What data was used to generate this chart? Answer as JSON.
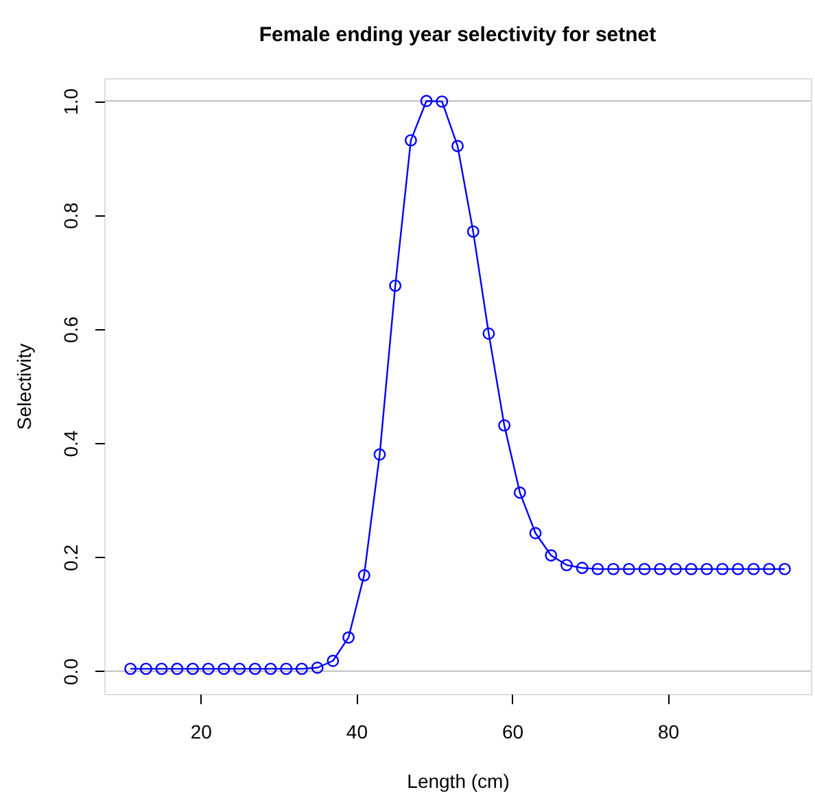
{
  "chart_data": {
    "type": "line",
    "title": "Female ending year selectivity for setnet",
    "xlabel": "Length (cm)",
    "ylabel": "Selectivity",
    "x": [
      11,
      13,
      15,
      17,
      19,
      21,
      23,
      25,
      27,
      29,
      31,
      33,
      35,
      37,
      39,
      41,
      43,
      45,
      47,
      49,
      51,
      53,
      55,
      57,
      59,
      61,
      63,
      65,
      67,
      69,
      71,
      73,
      75,
      77,
      79,
      81,
      83,
      85,
      87,
      89,
      91,
      93,
      95
    ],
    "series": [
      {
        "color": "#0000ff",
        "values": [
          0.004,
          0.004,
          0.004,
          0.004,
          0.004,
          0.004,
          0.004,
          0.004,
          0.004,
          0.004,
          0.004,
          0.004,
          0.006,
          0.018,
          0.059,
          0.168,
          0.38,
          0.676,
          0.931,
          1.0,
          0.999,
          0.921,
          0.771,
          0.592,
          0.431,
          0.313,
          0.242,
          0.203,
          0.186,
          0.181,
          0.179,
          0.179,
          0.179,
          0.179,
          0.179,
          0.179,
          0.179,
          0.179,
          0.179,
          0.179,
          0.179,
          0.179,
          0.179
        ]
      }
    ],
    "xlim": [
      7.64,
      98.36
    ],
    "ylim": [
      -0.04,
      1.04
    ],
    "xticks": [
      20,
      40,
      60,
      80
    ],
    "yticks": [
      {
        "value": 0,
        "label": "0.0"
      },
      0.2,
      0.4,
      0.6,
      0.8,
      {
        "value": 1,
        "label": "1.0"
      }
    ],
    "ref_lines": [
      {
        "axis": "y",
        "value": 0,
        "color": "#bebebe"
      },
      {
        "axis": "y",
        "value": 1,
        "color": "#bebebe"
      }
    ],
    "marker": "circle",
    "line_style": "solid",
    "grid": false,
    "legend": false
  }
}
